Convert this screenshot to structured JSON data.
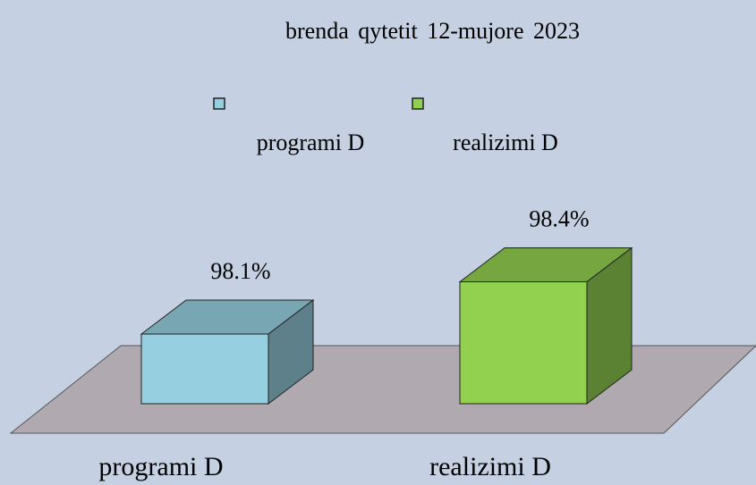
{
  "chart_data": {
    "type": "bar3d",
    "title": "brenda qytetit 12-mujore 2023",
    "categories": [
      "programi D",
      "realizimi D"
    ],
    "values": [
      98.1,
      98.4
    ],
    "value_labels": [
      "98.1%",
      "98.4%"
    ],
    "colors": [
      "#96cfdf",
      "#92d050"
    ],
    "ylim": [
      97.7,
      98.6
    ]
  }
}
